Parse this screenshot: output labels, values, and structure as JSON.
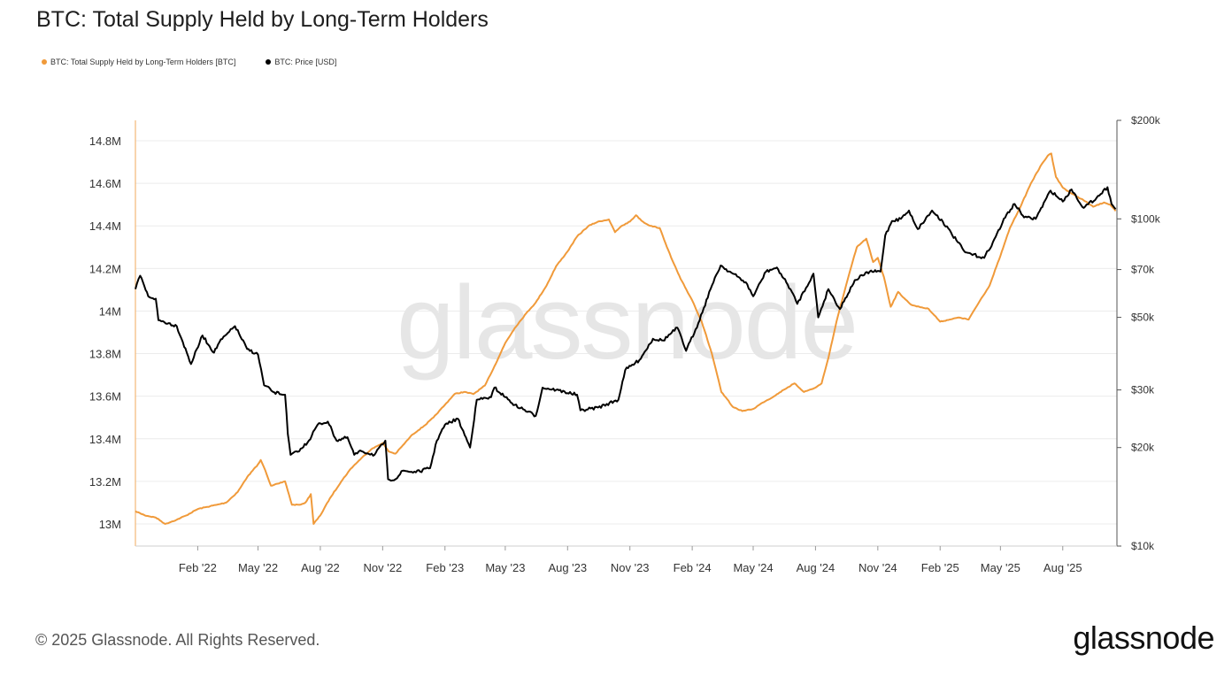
{
  "title": "BTC: Total Supply Held by Long-Term Holders",
  "legend": [
    {
      "label": "BTC: Total Supply Held by Long-Term Holders [BTC]",
      "color": "#f09a3a"
    },
    {
      "label": "BTC: Price [USD]",
      "color": "#000000"
    }
  ],
  "watermark": "glassnode",
  "footer": {
    "copyright": "© 2025 Glassnode. All Rights Reserved.",
    "brand": "glassnode"
  },
  "chart_data": {
    "type": "line",
    "title": "BTC: Total Supply Held by Long-Term Holders",
    "xlim": [
      "2021-11-01",
      "2025-10-20"
    ],
    "x_ticks": [
      {
        "date": "2022-02-01",
        "label": "Feb '22"
      },
      {
        "date": "2022-05-01",
        "label": "May '22"
      },
      {
        "date": "2022-08-01",
        "label": "Aug '22"
      },
      {
        "date": "2022-11-01",
        "label": "Nov '22"
      },
      {
        "date": "2023-02-01",
        "label": "Feb '23"
      },
      {
        "date": "2023-05-01",
        "label": "May '23"
      },
      {
        "date": "2023-08-01",
        "label": "Aug '23"
      },
      {
        "date": "2023-11-01",
        "label": "Nov '23"
      },
      {
        "date": "2024-02-01",
        "label": "Feb '24"
      },
      {
        "date": "2024-05-01",
        "label": "May '24"
      },
      {
        "date": "2024-08-01",
        "label": "Aug '24"
      },
      {
        "date": "2024-11-01",
        "label": "Nov '24"
      },
      {
        "date": "2025-02-01",
        "label": "Feb '25"
      },
      {
        "date": "2025-05-01",
        "label": "May '25"
      },
      {
        "date": "2025-08-01",
        "label": "Aug '25"
      }
    ],
    "y_left": {
      "scale": "linear",
      "range": [
        12900000,
        14900000
      ],
      "ticks": [
        {
          "value": 13000000,
          "label": "13M"
        },
        {
          "value": 13200000,
          "label": "13.2M"
        },
        {
          "value": 13400000,
          "label": "13.4M"
        },
        {
          "value": 13600000,
          "label": "13.6M"
        },
        {
          "value": 13800000,
          "label": "13.8M"
        },
        {
          "value": 14000000,
          "label": "14M"
        },
        {
          "value": 14200000,
          "label": "14.2M"
        },
        {
          "value": 14400000,
          "label": "14.4M"
        },
        {
          "value": 14600000,
          "label": "14.6M"
        },
        {
          "value": 14800000,
          "label": "14.8M"
        }
      ]
    },
    "y_right": {
      "scale": "log",
      "range": [
        10000,
        200000
      ],
      "ticks": [
        {
          "value": 10000,
          "label": "$10k"
        },
        {
          "value": 20000,
          "label": "$20k"
        },
        {
          "value": 30000,
          "label": "$30k"
        },
        {
          "value": 50000,
          "label": "$50k"
        },
        {
          "value": 70000,
          "label": "$70k"
        },
        {
          "value": 100000,
          "label": "$100k"
        },
        {
          "value": 200000,
          "label": "$200k"
        }
      ]
    },
    "grid": "horizontal",
    "series": [
      {
        "name": "BTC: Total Supply Held by Long-Term Holders [BTC]",
        "axis": "left",
        "color": "#f09a3a",
        "points": [
          [
            "2021-11-01",
            13060000
          ],
          [
            "2021-11-15",
            13040000
          ],
          [
            "2021-12-01",
            13030000
          ],
          [
            "2021-12-15",
            13000000
          ],
          [
            "2022-01-01",
            13020000
          ],
          [
            "2022-01-15",
            13040000
          ],
          [
            "2022-02-01",
            13070000
          ],
          [
            "2022-02-15",
            13080000
          ],
          [
            "2022-03-01",
            13090000
          ],
          [
            "2022-03-15",
            13100000
          ],
          [
            "2022-04-01",
            13150000
          ],
          [
            "2022-04-15",
            13220000
          ],
          [
            "2022-05-01",
            13280000
          ],
          [
            "2022-05-05",
            13300000
          ],
          [
            "2022-05-12",
            13250000
          ],
          [
            "2022-05-20",
            13180000
          ],
          [
            "2022-06-01",
            13190000
          ],
          [
            "2022-06-10",
            13200000
          ],
          [
            "2022-06-20",
            13090000
          ],
          [
            "2022-07-01",
            13090000
          ],
          [
            "2022-07-10",
            13100000
          ],
          [
            "2022-07-18",
            13140000
          ],
          [
            "2022-07-22",
            13000000
          ],
          [
            "2022-08-01",
            13040000
          ],
          [
            "2022-08-15",
            13120000
          ],
          [
            "2022-09-01",
            13200000
          ],
          [
            "2022-09-15",
            13260000
          ],
          [
            "2022-10-01",
            13310000
          ],
          [
            "2022-10-15",
            13350000
          ],
          [
            "2022-11-01",
            13380000
          ],
          [
            "2022-11-10",
            13340000
          ],
          [
            "2022-11-20",
            13330000
          ],
          [
            "2022-12-01",
            13370000
          ],
          [
            "2022-12-15",
            13420000
          ],
          [
            "2023-01-01",
            13460000
          ],
          [
            "2023-01-15",
            13500000
          ],
          [
            "2023-02-01",
            13560000
          ],
          [
            "2023-02-15",
            13610000
          ],
          [
            "2023-03-01",
            13620000
          ],
          [
            "2023-03-15",
            13610000
          ],
          [
            "2023-04-01",
            13650000
          ],
          [
            "2023-04-15",
            13740000
          ],
          [
            "2023-05-01",
            13850000
          ],
          [
            "2023-05-15",
            13920000
          ],
          [
            "2023-06-01",
            13990000
          ],
          [
            "2023-06-15",
            14040000
          ],
          [
            "2023-07-01",
            14120000
          ],
          [
            "2023-07-15",
            14210000
          ],
          [
            "2023-08-01",
            14280000
          ],
          [
            "2023-08-15",
            14350000
          ],
          [
            "2023-09-01",
            14400000
          ],
          [
            "2023-09-15",
            14420000
          ],
          [
            "2023-10-01",
            14430000
          ],
          [
            "2023-10-10",
            14370000
          ],
          [
            "2023-10-20",
            14400000
          ],
          [
            "2023-11-01",
            14420000
          ],
          [
            "2023-11-10",
            14450000
          ],
          [
            "2023-11-20",
            14420000
          ],
          [
            "2023-12-01",
            14400000
          ],
          [
            "2023-12-15",
            14390000
          ],
          [
            "2024-01-01",
            14250000
          ],
          [
            "2024-01-15",
            14150000
          ],
          [
            "2024-02-01",
            14050000
          ],
          [
            "2024-02-15",
            13950000
          ],
          [
            "2024-03-01",
            13800000
          ],
          [
            "2024-03-15",
            13620000
          ],
          [
            "2024-04-01",
            13550000
          ],
          [
            "2024-04-15",
            13530000
          ],
          [
            "2024-05-01",
            13540000
          ],
          [
            "2024-05-15",
            13570000
          ],
          [
            "2024-06-01",
            13600000
          ],
          [
            "2024-06-15",
            13630000
          ],
          [
            "2024-07-01",
            13660000
          ],
          [
            "2024-07-15",
            13620000
          ],
          [
            "2024-08-01",
            13640000
          ],
          [
            "2024-08-10",
            13660000
          ],
          [
            "2024-08-20",
            13780000
          ],
          [
            "2024-09-01",
            13950000
          ],
          [
            "2024-09-15",
            14120000
          ],
          [
            "2024-10-01",
            14300000
          ],
          [
            "2024-10-15",
            14340000
          ],
          [
            "2024-10-25",
            14230000
          ],
          [
            "2024-11-01",
            14250000
          ],
          [
            "2024-11-10",
            14160000
          ],
          [
            "2024-11-20",
            14020000
          ],
          [
            "2024-12-01",
            14090000
          ],
          [
            "2024-12-10",
            14060000
          ],
          [
            "2024-12-20",
            14030000
          ],
          [
            "2025-01-01",
            14020000
          ],
          [
            "2025-01-15",
            14010000
          ],
          [
            "2025-02-01",
            13950000
          ],
          [
            "2025-02-15",
            13960000
          ],
          [
            "2025-03-01",
            13970000
          ],
          [
            "2025-03-15",
            13960000
          ],
          [
            "2025-04-01",
            14050000
          ],
          [
            "2025-04-15",
            14120000
          ],
          [
            "2025-05-01",
            14260000
          ],
          [
            "2025-05-15",
            14390000
          ],
          [
            "2025-06-01",
            14500000
          ],
          [
            "2025-06-15",
            14600000
          ],
          [
            "2025-07-01",
            14690000
          ],
          [
            "2025-07-10",
            14730000
          ],
          [
            "2025-07-15",
            14740000
          ],
          [
            "2025-07-22",
            14630000
          ],
          [
            "2025-08-01",
            14580000
          ],
          [
            "2025-08-15",
            14550000
          ],
          [
            "2025-09-01",
            14520000
          ],
          [
            "2025-09-15",
            14490000
          ],
          [
            "2025-10-01",
            14510000
          ],
          [
            "2025-10-10",
            14500000
          ],
          [
            "2025-10-18",
            14470000
          ]
        ]
      },
      {
        "name": "BTC: Price [USD]",
        "axis": "right",
        "color": "#000000",
        "points": [
          [
            "2021-11-01",
            61000
          ],
          [
            "2021-11-08",
            67000
          ],
          [
            "2021-11-20",
            58000
          ],
          [
            "2021-12-01",
            57000
          ],
          [
            "2021-12-05",
            49000
          ],
          [
            "2021-12-20",
            48000
          ],
          [
            "2022-01-01",
            47000
          ],
          [
            "2022-01-10",
            42000
          ],
          [
            "2022-01-22",
            36000
          ],
          [
            "2022-02-08",
            44000
          ],
          [
            "2022-02-25",
            39000
          ],
          [
            "2022-03-05",
            42000
          ],
          [
            "2022-03-28",
            47000
          ],
          [
            "2022-04-15",
            40000
          ],
          [
            "2022-05-01",
            38500
          ],
          [
            "2022-05-10",
            31000
          ],
          [
            "2022-05-25",
            29500
          ],
          [
            "2022-06-10",
            29000
          ],
          [
            "2022-06-14",
            22000
          ],
          [
            "2022-06-18",
            19000
          ],
          [
            "2022-07-01",
            19500
          ],
          [
            "2022-07-15",
            21000
          ],
          [
            "2022-07-28",
            23500
          ],
          [
            "2022-08-12",
            24000
          ],
          [
            "2022-08-25",
            21000
          ],
          [
            "2022-09-10",
            21500
          ],
          [
            "2022-09-20",
            19000
          ],
          [
            "2022-10-01",
            19500
          ],
          [
            "2022-10-20",
            19000
          ],
          [
            "2022-11-05",
            21000
          ],
          [
            "2022-11-09",
            16000
          ],
          [
            "2022-11-20",
            16000
          ],
          [
            "2022-12-01",
            17000
          ],
          [
            "2022-12-20",
            16800
          ],
          [
            "2023-01-10",
            17300
          ],
          [
            "2023-01-20",
            21000
          ],
          [
            "2023-02-01",
            23500
          ],
          [
            "2023-02-20",
            24500
          ],
          [
            "2023-03-10",
            20000
          ],
          [
            "2023-03-20",
            28000
          ],
          [
            "2023-04-10",
            28500
          ],
          [
            "2023-04-15",
            30500
          ],
          [
            "2023-05-01",
            28500
          ],
          [
            "2023-05-15",
            27000
          ],
          [
            "2023-06-15",
            25000
          ],
          [
            "2023-06-25",
            30500
          ],
          [
            "2023-07-15",
            30000
          ],
          [
            "2023-08-15",
            29000
          ],
          [
            "2023-08-20",
            26000
          ],
          [
            "2023-09-15",
            26500
          ],
          [
            "2023-10-15",
            28000
          ],
          [
            "2023-10-25",
            34500
          ],
          [
            "2023-11-15",
            37000
          ],
          [
            "2023-12-05",
            43000
          ],
          [
            "2023-12-20",
            42500
          ],
          [
            "2024-01-10",
            46500
          ],
          [
            "2024-01-23",
            39500
          ],
          [
            "2024-02-10",
            48000
          ],
          [
            "2024-02-28",
            61000
          ],
          [
            "2024-03-14",
            72000
          ],
          [
            "2024-04-01",
            68000
          ],
          [
            "2024-04-20",
            64000
          ],
          [
            "2024-05-01",
            58000
          ],
          [
            "2024-05-20",
            69000
          ],
          [
            "2024-06-05",
            71000
          ],
          [
            "2024-06-25",
            61000
          ],
          [
            "2024-07-05",
            55000
          ],
          [
            "2024-07-29",
            68000
          ],
          [
            "2024-08-05",
            50000
          ],
          [
            "2024-08-20",
            61000
          ],
          [
            "2024-09-06",
            53000
          ],
          [
            "2024-09-28",
            65000
          ],
          [
            "2024-10-20",
            69000
          ],
          [
            "2024-11-05",
            69000
          ],
          [
            "2024-11-12",
            89000
          ],
          [
            "2024-11-22",
            98500
          ],
          [
            "2024-12-05",
            100000
          ],
          [
            "2024-12-17",
            106000
          ],
          [
            "2024-12-30",
            93000
          ],
          [
            "2025-01-20",
            106000
          ],
          [
            "2025-02-05",
            98000
          ],
          [
            "2025-02-25",
            86000
          ],
          [
            "2025-03-10",
            79000
          ],
          [
            "2025-04-07",
            76000
          ],
          [
            "2025-04-20",
            85000
          ],
          [
            "2025-05-10",
            103000
          ],
          [
            "2025-05-22",
            111000
          ],
          [
            "2025-06-05",
            101000
          ],
          [
            "2025-06-22",
            100000
          ],
          [
            "2025-07-14",
            122000
          ],
          [
            "2025-08-01",
            113000
          ],
          [
            "2025-08-14",
            123000
          ],
          [
            "2025-09-01",
            108000
          ],
          [
            "2025-09-20",
            116000
          ],
          [
            "2025-10-06",
            125000
          ],
          [
            "2025-10-12",
            111000
          ],
          [
            "2025-10-18",
            107000
          ]
        ]
      }
    ]
  }
}
